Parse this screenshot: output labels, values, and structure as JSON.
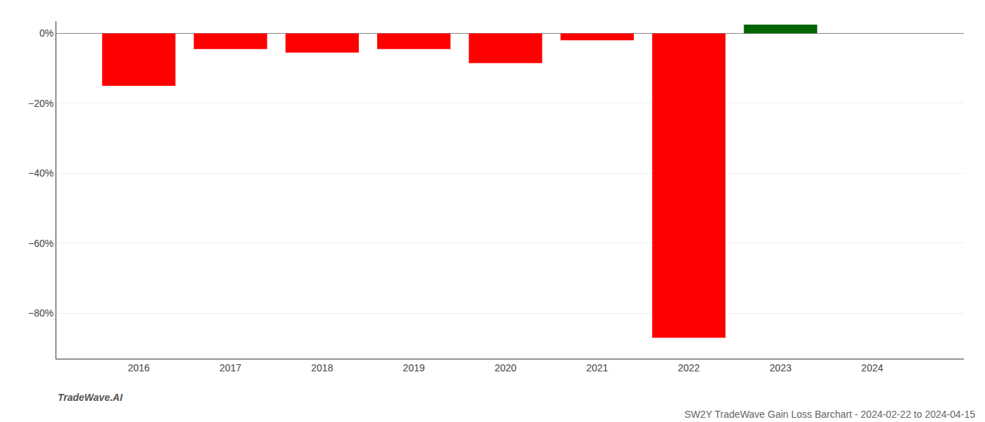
{
  "chart_data": {
    "type": "bar",
    "title": "SW2Y TradeWave Gain Loss Barchart - 2024-02-22 to 2024-04-15",
    "annotations": [
      "TradeWave.AI"
    ],
    "x": [
      2016,
      2017,
      2018,
      2019,
      2020,
      2021,
      2022,
      2023,
      2024
    ],
    "values": [
      -15.0,
      -4.5,
      -5.5,
      -4.5,
      -8.5,
      -2.0,
      -87.0,
      2.5,
      0.0
    ],
    "colors": [
      "#ff0000",
      "#ff0000",
      "#ff0000",
      "#ff0000",
      "#ff0000",
      "#ff0000",
      "#ff0000",
      "#006400",
      "#ff0000"
    ],
    "xlim": [
      2015.1,
      2025.0
    ],
    "xticks": [
      2016,
      2017,
      2018,
      2019,
      2020,
      2021,
      2022,
      2023,
      2024
    ],
    "ylim": [
      -93,
      3.5
    ],
    "yticks": [
      {
        "value": 0,
        "label": "0%"
      },
      {
        "value": -20,
        "label": "−20%"
      },
      {
        "value": -40,
        "label": "−40%"
      },
      {
        "value": -60,
        "label": "−60%"
      },
      {
        "value": -80,
        "label": "−80%"
      }
    ],
    "grid": true
  }
}
